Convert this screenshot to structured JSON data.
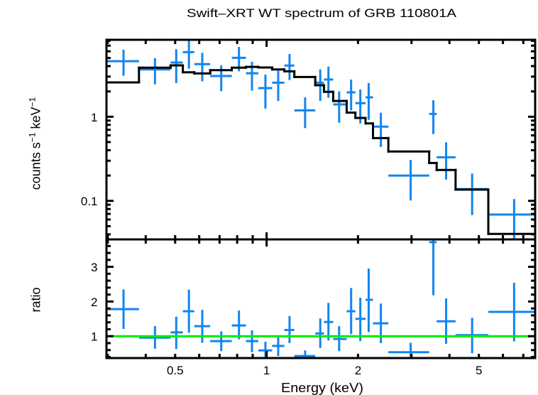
{
  "chart_data": {
    "type": "scatter",
    "title": "Swift–XRT WT spectrum of GRB 110801A",
    "xlabel": "Energy (keV)",
    "xscale": "log",
    "xlim": [
      0.297,
      7.66
    ],
    "grid": false,
    "legend": "none",
    "colors": {
      "data": "#1185f0",
      "model": "#000000",
      "unity": "#00f000",
      "axes": "#000000"
    },
    "xticks": {
      "major": [
        1
      ],
      "minor": [
        0.3,
        0.4,
        0.5,
        0.6,
        0.7,
        0.8,
        0.9,
        2,
        3,
        4,
        5,
        6,
        7
      ],
      "labels": [
        {
          "value": 0.5,
          "text": "0.5"
        },
        {
          "value": 1,
          "text": "1"
        },
        {
          "value": 2,
          "text": "2"
        },
        {
          "value": 5,
          "text": "5"
        }
      ]
    },
    "panels": [
      {
        "name": "spectrum",
        "ylabel_parts": [
          {
            "text": "counts s"
          },
          {
            "text": "−1",
            "sup": true
          },
          {
            "text": " keV"
          },
          {
            "text": "−1",
            "sup": true
          }
        ],
        "yscale": "log",
        "ylim": [
          0.0348,
          8.22
        ],
        "yticks": {
          "major": [
            0.1,
            1
          ],
          "minor": [
            0.04,
            0.05,
            0.06,
            0.07,
            0.08,
            0.09,
            0.2,
            0.3,
            0.4,
            0.5,
            0.6,
            0.7,
            0.8,
            0.9,
            2,
            3,
            4,
            5,
            6,
            7,
            8
          ],
          "labels": [
            {
              "value": 1,
              "text": "1"
            },
            {
              "value": 0.1,
              "text": "0.1"
            }
          ]
        },
        "series": [
          {
            "name": "data",
            "kind": "errorbar",
            "points": [
              {
                "x": 0.338,
                "xlo": 0.297,
                "xhi": 0.38,
                "y": 4.58,
                "ylo": 3.07,
                "yhi": 6.26
              },
              {
                "x": 0.429,
                "xlo": 0.38,
                "xhi": 0.483,
                "y": 3.65,
                "ylo": 2.43,
                "yhi": 4.96
              },
              {
                "x": 0.504,
                "xlo": 0.483,
                "xhi": 0.53,
                "y": 4.41,
                "ylo": 2.52,
                "yhi": 6.34
              },
              {
                "x": 0.555,
                "xlo": 0.53,
                "xhi": 0.578,
                "y": 5.87,
                "ylo": 3.72,
                "yhi": 8.22
              },
              {
                "x": 0.614,
                "xlo": 0.578,
                "xhi": 0.652,
                "y": 4.22,
                "ylo": 2.64,
                "yhi": 5.76
              },
              {
                "x": 0.709,
                "xlo": 0.652,
                "xhi": 0.768,
                "y": 3.05,
                "ylo": 2.01,
                "yhi": 4.08
              },
              {
                "x": 0.811,
                "xlo": 0.768,
                "xhi": 0.855,
                "y": 5.02,
                "ylo": 3.47,
                "yhi": 6.76
              },
              {
                "x": 0.895,
                "xlo": 0.855,
                "xhi": 0.939,
                "y": 3.29,
                "ylo": 2.04,
                "yhi": 4.5
              },
              {
                "x": 0.991,
                "xlo": 0.939,
                "xhi": 1.043,
                "y": 2.19,
                "ylo": 1.25,
                "yhi": 3.17
              },
              {
                "x": 1.092,
                "xlo": 1.043,
                "xhi": 1.144,
                "y": 2.54,
                "ylo": 1.54,
                "yhi": 3.54
              },
              {
                "x": 1.19,
                "xlo": 1.144,
                "xhi": 1.234,
                "y": 4.06,
                "ylo": 2.73,
                "yhi": 5.57
              },
              {
                "x": 1.339,
                "xlo": 1.234,
                "xhi": 1.446,
                "y": 1.19,
                "ylo": 0.733,
                "yhi": 1.7
              },
              {
                "x": 1.502,
                "xlo": 1.446,
                "xhi": 1.545,
                "y": 2.54,
                "ylo": 1.54,
                "yhi": 3.65
              },
              {
                "x": 1.598,
                "xlo": 1.545,
                "xhi": 1.657,
                "y": 2.77,
                "ylo": 1.68,
                "yhi": 3.95
              },
              {
                "x": 1.733,
                "xlo": 1.657,
                "xhi": 1.835,
                "y": 1.4,
                "ylo": 0.849,
                "yhi": 2.0
              },
              {
                "x": 1.898,
                "xlo": 1.835,
                "xhi": 1.96,
                "y": 1.95,
                "ylo": 1.19,
                "yhi": 2.77
              },
              {
                "x": 2.035,
                "xlo": 1.96,
                "xhi": 2.117,
                "y": 1.45,
                "ylo": 0.833,
                "yhi": 2.11
              },
              {
                "x": 2.168,
                "xlo": 2.117,
                "xhi": 2.24,
                "y": 1.7,
                "ylo": 0.918,
                "yhi": 2.51
              },
              {
                "x": 2.378,
                "xlo": 2.24,
                "xhi": 2.517,
                "y": 0.762,
                "ylo": 0.438,
                "yhi": 1.115
              },
              {
                "x": 2.981,
                "xlo": 2.517,
                "xhi": 3.43,
                "y": 0.2,
                "ylo": 0.101,
                "yhi": 0.307
              },
              {
                "x": 3.54,
                "xlo": 3.43,
                "xhi": 3.63,
                "y": 1.08,
                "ylo": 0.622,
                "yhi": 1.57
              },
              {
                "x": 3.9,
                "xlo": 3.63,
                "xhi": 4.19,
                "y": 0.33,
                "ylo": 0.179,
                "yhi": 0.497
              },
              {
                "x": 4.75,
                "xlo": 4.19,
                "xhi": 5.37,
                "y": 0.138,
                "ylo": 0.0678,
                "yhi": 0.211
              },
              {
                "x": 6.531,
                "xlo": 5.37,
                "xhi": 7.66,
                "y": 0.0687,
                "ylo": 0.0348,
                "yhi": 0.105
              }
            ]
          },
          {
            "name": "model",
            "kind": "step",
            "steps": [
              {
                "xlo": 0.297,
                "xhi": 0.38,
                "y": 2.56
              },
              {
                "xlo": 0.38,
                "xhi": 0.483,
                "y": 3.83
              },
              {
                "xlo": 0.483,
                "xhi": 0.53,
                "y": 4.08
              },
              {
                "xlo": 0.53,
                "xhi": 0.578,
                "y": 3.38
              },
              {
                "xlo": 0.578,
                "xhi": 0.652,
                "y": 3.27
              },
              {
                "xlo": 0.652,
                "xhi": 0.768,
                "y": 3.58
              },
              {
                "xlo": 0.768,
                "xhi": 0.855,
                "y": 3.83
              },
              {
                "xlo": 0.855,
                "xhi": 0.939,
                "y": 3.92
              },
              {
                "xlo": 0.939,
                "xhi": 1.043,
                "y": 3.85
              },
              {
                "xlo": 1.043,
                "xhi": 1.144,
                "y": 3.65
              },
              {
                "xlo": 1.144,
                "xhi": 1.234,
                "y": 3.47
              },
              {
                "xlo": 1.234,
                "xhi": 1.446,
                "y": 2.97
              },
              {
                "xlo": 1.446,
                "xhi": 1.545,
                "y": 2.37
              },
              {
                "xlo": 1.545,
                "xhi": 1.657,
                "y": 1.98
              },
              {
                "xlo": 1.657,
                "xhi": 1.835,
                "y": 1.54
              },
              {
                "xlo": 1.835,
                "xhi": 1.96,
                "y": 1.12
              },
              {
                "xlo": 1.96,
                "xhi": 2.117,
                "y": 0.967
              },
              {
                "xlo": 2.117,
                "xhi": 2.24,
                "y": 0.833
              },
              {
                "xlo": 2.24,
                "xhi": 2.517,
                "y": 0.558
              },
              {
                "xlo": 2.517,
                "xhi": 3.43,
                "y": 0.386
              },
              {
                "xlo": 3.43,
                "xhi": 3.63,
                "y": 0.282
              },
              {
                "xlo": 3.63,
                "xhi": 4.19,
                "y": 0.233
              },
              {
                "xlo": 4.19,
                "xhi": 5.37,
                "y": 0.136
              },
              {
                "xlo": 5.37,
                "xhi": 7.66,
                "y": 0.0405
              }
            ]
          }
        ]
      },
      {
        "name": "ratio",
        "ylabel": "ratio",
        "yscale": "linear",
        "ylim": [
          0.37,
          3.79
        ],
        "yticks": {
          "major": [
            1,
            2,
            3
          ],
          "minor": [
            0.4,
            0.6,
            0.8,
            1.2,
            1.4,
            1.6,
            1.8,
            2.2,
            2.4,
            2.6,
            2.8,
            3.2,
            3.4,
            3.6
          ],
          "labels": [
            {
              "value": 3,
              "text": "3"
            },
            {
              "value": 2,
              "text": "2"
            },
            {
              "value": 1,
              "text": "1"
            }
          ]
        },
        "series": [
          {
            "name": "ratio",
            "kind": "errorbar",
            "points": [
              {
                "x": 0.338,
                "xlo": 0.297,
                "xhi": 0.38,
                "y": 1.78,
                "ylo": 1.21,
                "yhi": 2.35
              },
              {
                "x": 0.429,
                "xlo": 0.38,
                "xhi": 0.483,
                "y": 0.96,
                "ylo": 0.64,
                "yhi": 1.29
              },
              {
                "x": 0.504,
                "xlo": 0.483,
                "xhi": 0.53,
                "y": 1.11,
                "ylo": 0.63,
                "yhi": 1.56
              },
              {
                "x": 0.555,
                "xlo": 0.53,
                "xhi": 0.578,
                "y": 1.72,
                "ylo": 1.1,
                "yhi": 2.34
              },
              {
                "x": 0.614,
                "xlo": 0.578,
                "xhi": 0.652,
                "y": 1.29,
                "ylo": 0.81,
                "yhi": 1.76
              },
              {
                "x": 0.709,
                "xlo": 0.652,
                "xhi": 0.768,
                "y": 0.86,
                "ylo": 0.57,
                "yhi": 1.14
              },
              {
                "x": 0.811,
                "xlo": 0.768,
                "xhi": 0.855,
                "y": 1.31,
                "ylo": 0.91,
                "yhi": 1.74
              },
              {
                "x": 0.895,
                "xlo": 0.855,
                "xhi": 0.939,
                "y": 0.86,
                "ylo": 0.54,
                "yhi": 1.17
              },
              {
                "x": 0.991,
                "xlo": 0.939,
                "xhi": 1.043,
                "y": 0.59,
                "ylo": 0.33,
                "yhi": 0.84
              },
              {
                "x": 1.092,
                "xlo": 1.043,
                "xhi": 1.144,
                "y": 0.72,
                "ylo": 0.43,
                "yhi": 0.98
              },
              {
                "x": 1.19,
                "xlo": 1.144,
                "xhi": 1.234,
                "y": 1.18,
                "ylo": 0.8,
                "yhi": 1.58
              },
              {
                "x": 1.339,
                "xlo": 1.234,
                "xhi": 1.446,
                "y": 0.43,
                "ylo": 0.25,
                "yhi": 0.59
              },
              {
                "x": 1.502,
                "xlo": 1.446,
                "xhi": 1.545,
                "y": 1.08,
                "ylo": 0.66,
                "yhi": 1.51
              },
              {
                "x": 1.598,
                "xlo": 1.545,
                "xhi": 1.657,
                "y": 1.41,
                "ylo": 0.88,
                "yhi": 1.96
              },
              {
                "x": 1.733,
                "xlo": 1.657,
                "xhi": 1.835,
                "y": 0.92,
                "ylo": 0.57,
                "yhi": 1.29
              },
              {
                "x": 1.898,
                "xlo": 1.835,
                "xhi": 1.96,
                "y": 1.72,
                "ylo": 1.06,
                "yhi": 2.39
              },
              {
                "x": 2.035,
                "xlo": 1.96,
                "xhi": 2.117,
                "y": 1.5,
                "ylo": 0.86,
                "yhi": 2.11
              },
              {
                "x": 2.168,
                "xlo": 2.117,
                "xhi": 2.24,
                "y": 2.05,
                "ylo": 1.12,
                "yhi": 2.95
              },
              {
                "x": 2.378,
                "xlo": 2.24,
                "xhi": 2.517,
                "y": 1.37,
                "ylo": 0.8,
                "yhi": 1.94
              },
              {
                "x": 2.981,
                "xlo": 2.517,
                "xhi": 3.43,
                "y": 0.54,
                "ylo": 0.26,
                "yhi": 0.81
              },
              {
                "x": 3.54,
                "xlo": 3.43,
                "xhi": 3.63,
                "y": 3.71,
                "ylo": 2.18,
                "yhi": 5.57
              },
              {
                "x": 3.9,
                "xlo": 3.63,
                "xhi": 4.19,
                "y": 1.43,
                "ylo": 0.78,
                "yhi": 2.09
              },
              {
                "x": 4.75,
                "xlo": 4.19,
                "xhi": 5.37,
                "y": 1.03,
                "ylo": 0.51,
                "yhi": 1.53
              },
              {
                "x": 6.531,
                "xlo": 5.37,
                "xhi": 7.66,
                "y": 1.7,
                "ylo": 0.85,
                "yhi": 2.54
              }
            ]
          },
          {
            "name": "unity",
            "kind": "hline",
            "y": 1
          }
        ]
      }
    ]
  }
}
